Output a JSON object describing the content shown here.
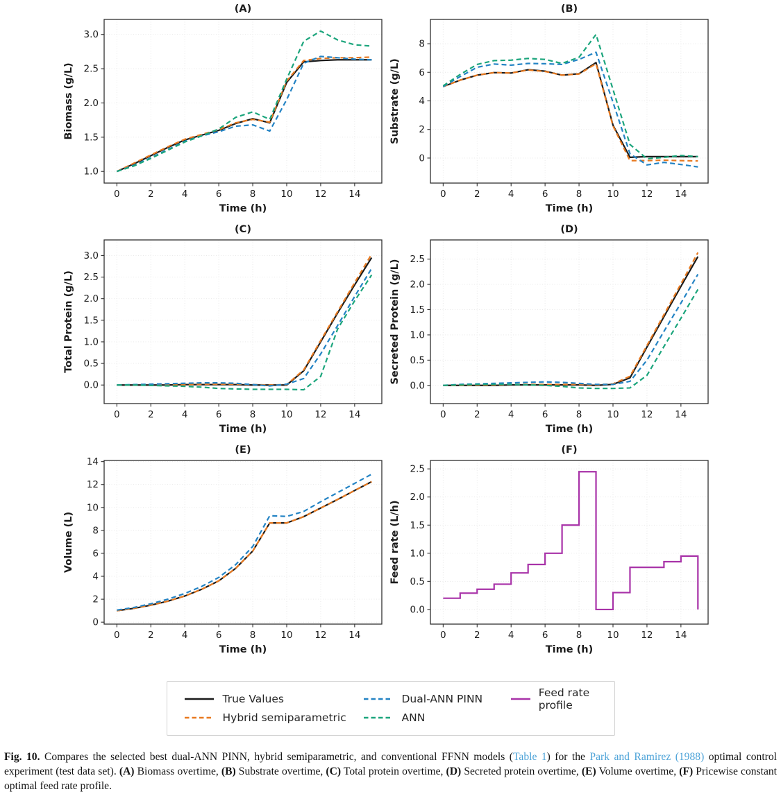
{
  "colors": {
    "axis": "#2f2f2f",
    "grid": "#e7e7e7",
    "text": "#1c1c1c",
    "link": "#4da3d8"
  },
  "chart_data": [
    {
      "id": "A",
      "title": "(A)",
      "xlabel": "Time (h)",
      "ylabel": "Biomass (g/L)",
      "type": "line",
      "x": [
        0,
        1,
        2,
        3,
        4,
        5,
        6,
        7,
        8,
        9,
        10,
        11,
        12,
        13,
        14,
        15
      ],
      "xlim": [
        -0.75,
        15.6
      ],
      "ylim": [
        0.83,
        3.22
      ],
      "xticks": [
        0,
        2,
        4,
        6,
        8,
        10,
        12,
        14
      ],
      "xtick_labels": [
        "0",
        "2",
        "4",
        "6",
        "8",
        "10",
        "12",
        "14"
      ],
      "yticks": [
        1.0,
        1.5,
        2.0,
        2.5,
        3.0
      ],
      "ytick_labels": [
        "1.0",
        "1.5",
        "2.0",
        "2.5",
        "3.0"
      ],
      "series": [
        {
          "name": "True Values",
          "color": "#1a1a1a",
          "dash": false,
          "values": [
            1.0,
            1.11,
            1.23,
            1.35,
            1.46,
            1.53,
            1.6,
            1.7,
            1.77,
            1.71,
            2.3,
            2.6,
            2.62,
            2.63,
            2.63,
            2.63
          ]
        },
        {
          "name": "Hybrid semiparametric",
          "color": "#e8791f",
          "dash": true,
          "values": [
            1.0,
            1.12,
            1.24,
            1.36,
            1.47,
            1.54,
            1.61,
            1.71,
            1.76,
            1.72,
            2.32,
            2.62,
            2.65,
            2.66,
            2.66,
            2.67
          ]
        },
        {
          "name": "Dual-ANN PINN",
          "color": "#2383c4",
          "dash": true,
          "values": [
            1.0,
            1.09,
            1.2,
            1.32,
            1.44,
            1.52,
            1.58,
            1.66,
            1.68,
            1.59,
            2.05,
            2.58,
            2.68,
            2.66,
            2.64,
            2.63
          ]
        },
        {
          "name": "ANN",
          "color": "#1ba57c",
          "dash": true,
          "values": [
            1.0,
            1.08,
            1.19,
            1.31,
            1.43,
            1.52,
            1.62,
            1.79,
            1.87,
            1.76,
            2.35,
            2.9,
            3.05,
            2.92,
            2.85,
            2.83
          ]
        }
      ]
    },
    {
      "id": "B",
      "title": "(B)",
      "xlabel": "Time (h)",
      "ylabel": "Substrate (g/L)",
      "type": "line",
      "x": [
        0,
        1,
        2,
        3,
        4,
        5,
        6,
        7,
        8,
        9,
        10,
        11,
        12,
        13,
        14,
        15
      ],
      "xlim": [
        -0.75,
        15.6
      ],
      "ylim": [
        -1.75,
        9.7
      ],
      "xticks": [
        0,
        2,
        4,
        6,
        8,
        10,
        12,
        14
      ],
      "xtick_labels": [
        "0",
        "2",
        "4",
        "6",
        "8",
        "10",
        "12",
        "14"
      ],
      "yticks": [
        0,
        2,
        4,
        6,
        8
      ],
      "ytick_labels": [
        "0",
        "2",
        "4",
        "6",
        "8"
      ],
      "series": [
        {
          "name": "True Values",
          "color": "#1a1a1a",
          "dash": false,
          "values": [
            5.0,
            5.45,
            5.8,
            5.98,
            5.95,
            6.18,
            6.08,
            5.8,
            5.9,
            6.68,
            2.3,
            0.05,
            0.1,
            0.1,
            0.1,
            0.1
          ]
        },
        {
          "name": "Hybrid semiparametric",
          "color": "#e8791f",
          "dash": true,
          "values": [
            5.0,
            5.45,
            5.8,
            5.98,
            5.95,
            6.16,
            6.06,
            5.8,
            5.88,
            6.6,
            2.25,
            -0.18,
            -0.18,
            -0.15,
            -0.18,
            -0.2
          ]
        },
        {
          "name": "Dual-ANN PINN",
          "color": "#2383c4",
          "dash": true,
          "values": [
            5.0,
            5.7,
            6.35,
            6.58,
            6.5,
            6.62,
            6.6,
            6.55,
            6.9,
            7.4,
            3.9,
            0.3,
            -0.48,
            -0.3,
            -0.45,
            -0.62
          ]
        },
        {
          "name": "ANN",
          "color": "#1ba57c",
          "dash": true,
          "values": [
            5.05,
            5.85,
            6.55,
            6.82,
            6.85,
            6.97,
            6.9,
            6.62,
            7.05,
            8.65,
            4.8,
            0.95,
            -0.05,
            0.05,
            0.18,
            0.1
          ]
        }
      ]
    },
    {
      "id": "C",
      "title": "(C)",
      "xlabel": "Time (h)",
      "ylabel": "Total Protein (g/L)",
      "type": "line",
      "x": [
        0,
        1,
        2,
        3,
        4,
        5,
        6,
        7,
        8,
        9,
        10,
        11,
        12,
        13,
        14,
        15
      ],
      "xlim": [
        -0.75,
        15.6
      ],
      "ylim": [
        -0.43,
        3.36
      ],
      "xticks": [
        0,
        2,
        4,
        6,
        8,
        10,
        12,
        14
      ],
      "xtick_labels": [
        "0",
        "2",
        "4",
        "6",
        "8",
        "10",
        "12",
        "14"
      ],
      "yticks": [
        0.0,
        0.5,
        1.0,
        1.5,
        2.0,
        2.5,
        3.0
      ],
      "ytick_labels": [
        "0.0",
        "0.5",
        "1.0",
        "1.5",
        "2.0",
        "2.5",
        "3.0"
      ],
      "series": [
        {
          "name": "True Values",
          "color": "#1a1a1a",
          "dash": false,
          "values": [
            0.0,
            0.0,
            0.0,
            0.0,
            0.01,
            0.01,
            0.01,
            0.01,
            0.0,
            0.0,
            0.0,
            0.33,
            1.0,
            1.67,
            2.32,
            2.95
          ]
        },
        {
          "name": "Hybrid semiparametric",
          "color": "#e8791f",
          "dash": true,
          "values": [
            0.0,
            0.0,
            0.0,
            0.01,
            0.01,
            0.02,
            0.02,
            0.02,
            0.01,
            0.0,
            0.01,
            0.35,
            1.03,
            1.7,
            2.37,
            3.03
          ]
        },
        {
          "name": "Dual-ANN PINN",
          "color": "#2383c4",
          "dash": true,
          "values": [
            0.0,
            0.01,
            0.02,
            0.03,
            0.04,
            0.05,
            0.05,
            0.04,
            0.01,
            -0.02,
            0.02,
            0.15,
            0.72,
            1.38,
            2.05,
            2.7
          ]
        },
        {
          "name": "ANN",
          "color": "#1ba57c",
          "dash": true,
          "values": [
            0.0,
            0.0,
            -0.01,
            -0.02,
            -0.03,
            -0.05,
            -0.08,
            -0.09,
            -0.1,
            -0.1,
            -0.1,
            -0.11,
            0.2,
            1.3,
            1.95,
            2.55
          ]
        }
      ]
    },
    {
      "id": "D",
      "title": "(D)",
      "xlabel": "Time (h)",
      "ylabel": "Secreted Protein (g/L)",
      "type": "line",
      "x": [
        0,
        1,
        2,
        3,
        4,
        5,
        6,
        7,
        8,
        9,
        10,
        11,
        12,
        13,
        14,
        15
      ],
      "xlim": [
        -0.75,
        15.6
      ],
      "ylim": [
        -0.36,
        2.88
      ],
      "xticks": [
        0,
        2,
        4,
        6,
        8,
        10,
        12,
        14
      ],
      "xtick_labels": [
        "0",
        "2",
        "4",
        "6",
        "8",
        "10",
        "12",
        "14"
      ],
      "yticks": [
        0.0,
        0.5,
        1.0,
        1.5,
        2.0,
        2.5
      ],
      "ytick_labels": [
        "0.0",
        "0.5",
        "1.0",
        "1.5",
        "2.0",
        "2.5"
      ],
      "series": [
        {
          "name": "True Values",
          "color": "#1a1a1a",
          "dash": false,
          "values": [
            0.0,
            0.0,
            0.0,
            0.0,
            0.01,
            0.01,
            0.01,
            0.01,
            0.01,
            0.0,
            0.02,
            0.15,
            0.76,
            1.36,
            1.96,
            2.55
          ]
        },
        {
          "name": "Hybrid semiparametric",
          "color": "#e8791f",
          "dash": true,
          "values": [
            0.0,
            0.0,
            0.01,
            0.01,
            0.02,
            0.02,
            0.02,
            0.02,
            0.02,
            0.01,
            0.03,
            0.18,
            0.79,
            1.4,
            2.01,
            2.63
          ]
        },
        {
          "name": "Dual-ANN PINN",
          "color": "#2383c4",
          "dash": true,
          "values": [
            0.0,
            0.02,
            0.03,
            0.04,
            0.05,
            0.06,
            0.07,
            0.06,
            0.04,
            0.02,
            0.02,
            0.08,
            0.5,
            1.07,
            1.63,
            2.2
          ]
        },
        {
          "name": "ANN",
          "color": "#1ba57c",
          "dash": true,
          "values": [
            0.0,
            0.01,
            0.02,
            0.02,
            0.02,
            0.01,
            0.0,
            -0.02,
            -0.05,
            -0.06,
            -0.06,
            -0.05,
            0.2,
            0.77,
            1.33,
            1.9
          ]
        }
      ]
    },
    {
      "id": "E",
      "title": "(E)",
      "xlabel": "Time (h)",
      "ylabel": "Volume (L)",
      "type": "line",
      "x": [
        0,
        1,
        2,
        3,
        4,
        5,
        6,
        7,
        8,
        9,
        10,
        11,
        12,
        13,
        14,
        15
      ],
      "xlim": [
        -0.75,
        15.6
      ],
      "ylim": [
        -0.17,
        14.1
      ],
      "xticks": [
        0,
        2,
        4,
        6,
        8,
        10,
        12,
        14
      ],
      "xtick_labels": [
        "0",
        "2",
        "4",
        "6",
        "8",
        "10",
        "12",
        "14"
      ],
      "yticks": [
        0,
        2,
        4,
        6,
        8,
        10,
        12,
        14
      ],
      "ytick_labels": [
        "0",
        "2",
        "4",
        "6",
        "8",
        "10",
        "12",
        "14"
      ],
      "series": [
        {
          "name": "True Values",
          "color": "#1a1a1a",
          "dash": false,
          "values": [
            1.0,
            1.2,
            1.48,
            1.83,
            2.28,
            2.87,
            3.6,
            4.7,
            6.2,
            8.65,
            8.65,
            9.2,
            9.95,
            10.7,
            11.48,
            12.25
          ]
        },
        {
          "name": "Hybrid semiparametric",
          "color": "#e8791f",
          "dash": true,
          "values": [
            1.0,
            1.2,
            1.48,
            1.83,
            2.28,
            2.87,
            3.6,
            4.7,
            6.2,
            8.65,
            8.65,
            9.2,
            9.95,
            10.7,
            11.48,
            12.25
          ]
        },
        {
          "name": "Dual-ANN PINN",
          "color": "#2383c4",
          "dash": true,
          "values": [
            1.05,
            1.28,
            1.6,
            2.0,
            2.5,
            3.12,
            3.9,
            5.02,
            6.6,
            9.28,
            9.22,
            9.65,
            10.5,
            11.3,
            12.1,
            12.9
          ]
        }
      ]
    },
    {
      "id": "F",
      "title": "(F)",
      "xlabel": "Time (h)",
      "ylabel": "Feed rate (L/h)",
      "type": "step",
      "x": [
        0,
        1,
        2,
        3,
        4,
        5,
        6,
        7,
        8,
        9,
        10,
        11,
        12,
        13,
        14,
        15
      ],
      "xlim": [
        -0.75,
        15.6
      ],
      "ylim": [
        -0.26,
        2.65
      ],
      "xticks": [
        0,
        2,
        4,
        6,
        8,
        10,
        12,
        14
      ],
      "xtick_labels": [
        "0",
        "2",
        "4",
        "6",
        "8",
        "10",
        "12",
        "14"
      ],
      "yticks": [
        0.0,
        0.5,
        1.0,
        1.5,
        2.0,
        2.5
      ],
      "ytick_labels": [
        "0.0",
        "0.5",
        "1.0",
        "1.5",
        "2.0",
        "2.5"
      ],
      "series": [
        {
          "name": "Feed rate profile",
          "color": "#a832a8",
          "dash": false,
          "step_values": [
            0.2,
            0.29,
            0.36,
            0.45,
            0.65,
            0.8,
            1.0,
            1.5,
            2.45,
            0.0,
            0.3,
            0.75,
            0.75,
            0.85,
            0.95
          ],
          "end_value": 0.0
        }
      ]
    }
  ],
  "legend": {
    "items": [
      {
        "label": "True Values",
        "color": "#1a1a1a",
        "dash": false
      },
      {
        "label": "Hybrid semiparametric",
        "color": "#e8791f",
        "dash": true
      },
      {
        "label": "Dual-ANN PINN",
        "color": "#2383c4",
        "dash": true
      },
      {
        "label": "ANN",
        "color": "#1ba57c",
        "dash": true
      },
      {
        "label": "Feed rate profile",
        "color": "#a832a8",
        "dash": false
      }
    ]
  },
  "caption": {
    "segments": [
      {
        "t": "Fig. 10.",
        "s": "b"
      },
      {
        "t": " Compares the selected best dual-ANN PINN, hybrid semiparametric, and conventional FFNN models (",
        "s": "n"
      },
      {
        "t": "Table 1",
        "s": "lnk"
      },
      {
        "t": ") for the ",
        "s": "n"
      },
      {
        "t": "Park and Ramirez (1988)",
        "s": "lnk"
      },
      {
        "t": " optimal control experiment (test data set). ",
        "s": "n"
      },
      {
        "t": "(A)",
        "s": "b"
      },
      {
        "t": " Biomass overtime, ",
        "s": "n"
      },
      {
        "t": "(B)",
        "s": "b"
      },
      {
        "t": " Substrate overtime, ",
        "s": "n"
      },
      {
        "t": "(C)",
        "s": "b"
      },
      {
        "t": " Total protein overtime, ",
        "s": "n"
      },
      {
        "t": "(D)",
        "s": "b"
      },
      {
        "t": " Secreted protein overtime, ",
        "s": "n"
      },
      {
        "t": "(E)",
        "s": "b"
      },
      {
        "t": " Volume overtime, ",
        "s": "n"
      },
      {
        "t": "(F)",
        "s": "b"
      },
      {
        "t": " Pricewise constant optimal feed rate profile.",
        "s": "n"
      }
    ]
  }
}
